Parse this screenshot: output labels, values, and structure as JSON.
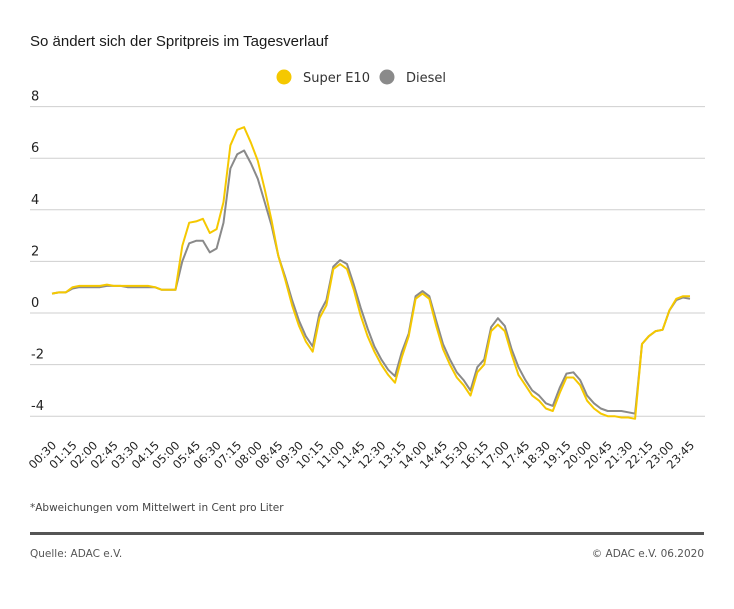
{
  "chart_data": {
    "type": "line",
    "title": "So ändert sich der Spritpreis im Tagesverlauf",
    "footnote": "*Abweichungen vom Mittelwert in Cent pro Liter",
    "ylim": [
      -4.5,
      8
    ],
    "yticks": [
      8,
      6,
      4,
      2,
      0,
      -2,
      -4
    ],
    "grid": true,
    "legend_placement": "top-center",
    "x_start": "00:30",
    "x_step_minutes": 15,
    "x_tick_labels": [
      "00:30",
      "01:15",
      "02:00",
      "02:45",
      "03:30",
      "04:15",
      "05:00",
      "05:45",
      "06:30",
      "07:15",
      "08:00",
      "08:45",
      "09:30",
      "10:15",
      "11:00",
      "11:45",
      "12:30",
      "13:15",
      "14:00",
      "14:45",
      "15:30",
      "16:15",
      "17:00",
      "17:45",
      "18:30",
      "19:15",
      "20:00",
      "20:45",
      "21:30",
      "22:15",
      "23:00",
      "23:45"
    ],
    "series": [
      {
        "name": "Super E10",
        "color": "#f5c800",
        "values": [
          0.75,
          0.8,
          0.8,
          1.0,
          1.05,
          1.05,
          1.05,
          1.05,
          1.1,
          1.05,
          1.05,
          1.05,
          1.05,
          1.05,
          1.05,
          1.0,
          0.9,
          0.9,
          0.9,
          2.6,
          3.5,
          3.55,
          3.65,
          3.1,
          3.25,
          4.3,
          6.5,
          7.1,
          7.2,
          6.6,
          5.9,
          4.8,
          3.6,
          2.2,
          1.3,
          0.3,
          -0.5,
          -1.1,
          -1.5,
          -0.2,
          0.3,
          1.7,
          1.9,
          1.7,
          0.9,
          -0.1,
          -0.9,
          -1.5,
          -2.0,
          -2.4,
          -2.7,
          -1.7,
          -0.9,
          0.55,
          0.75,
          0.55,
          -0.5,
          -1.4,
          -2.0,
          -2.5,
          -2.8,
          -3.2,
          -2.3,
          -2.0,
          -0.7,
          -0.45,
          -0.7,
          -1.6,
          -2.4,
          -2.8,
          -3.2,
          -3.4,
          -3.7,
          -3.8,
          -3.1,
          -2.5,
          -2.5,
          -2.8,
          -3.4,
          -3.7,
          -3.9,
          -4.0,
          -4.0,
          -4.05,
          -4.05,
          -4.1,
          -1.2,
          -0.9,
          -0.7,
          -0.65,
          0.1,
          0.55,
          0.65,
          0.65
        ]
      },
      {
        "name": "Diesel",
        "color": "#8a8a8a",
        "values": [
          0.75,
          0.8,
          0.8,
          0.95,
          1.0,
          1.0,
          1.0,
          1.0,
          1.05,
          1.05,
          1.05,
          1.0,
          1.0,
          1.0,
          1.0,
          1.0,
          0.9,
          0.9,
          0.9,
          2.0,
          2.7,
          2.8,
          2.8,
          2.35,
          2.5,
          3.5,
          5.6,
          6.15,
          6.3,
          5.8,
          5.2,
          4.3,
          3.4,
          2.2,
          1.4,
          0.5,
          -0.3,
          -0.9,
          -1.3,
          0.0,
          0.5,
          1.8,
          2.05,
          1.9,
          1.1,
          0.2,
          -0.6,
          -1.3,
          -1.8,
          -2.2,
          -2.45,
          -1.5,
          -0.8,
          0.65,
          0.85,
          0.65,
          -0.3,
          -1.2,
          -1.8,
          -2.3,
          -2.6,
          -3.0,
          -2.1,
          -1.8,
          -0.55,
          -0.2,
          -0.5,
          -1.4,
          -2.1,
          -2.6,
          -3.0,
          -3.2,
          -3.5,
          -3.6,
          -2.9,
          -2.35,
          -2.3,
          -2.6,
          -3.2,
          -3.5,
          -3.7,
          -3.8,
          -3.8,
          -3.8,
          -3.85,
          -3.9,
          -1.2,
          -0.9,
          -0.7,
          -0.65,
          0.1,
          0.5,
          0.6,
          0.55
        ]
      }
    ]
  },
  "footer": {
    "source": "Quelle: ADAC e.V.",
    "copyright": "© ADAC e.V. 06.2020"
  }
}
